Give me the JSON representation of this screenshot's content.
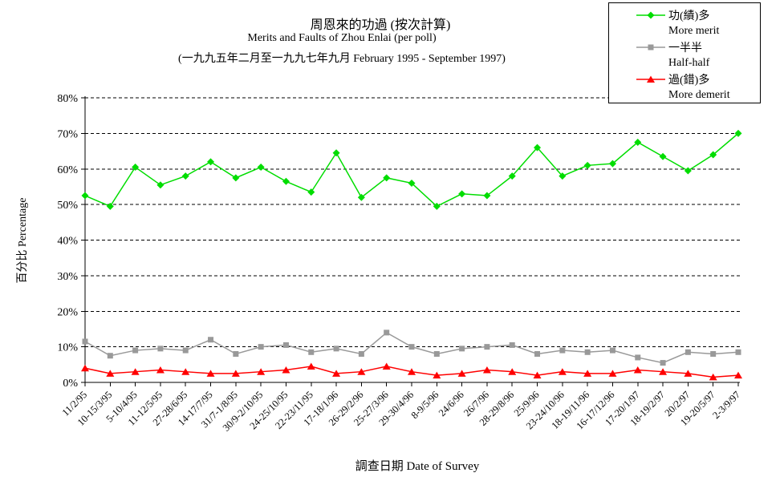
{
  "chart_data": {
    "type": "line",
    "title_zh": "周恩來的功過 (按次計算)",
    "title_en": "Merits and Faults of Zhou Enlai (per poll)",
    "subtitle": "(一九九五年二月至一九九七年九月 February 1995 - September 1997)",
    "xlabel": "調查日期 Date of Survey",
    "ylabel": "百分比 Percentage",
    "ylim": [
      0,
      80
    ],
    "y_tick_step": 10,
    "y_tick_suffix": "%",
    "grid": "horizontal dashed gridlines every 10%",
    "legend_position": "top-right boxed",
    "categories": [
      "11/2/95",
      "10-15/3/95",
      "5-10/4/95",
      "11-12/5/95",
      "27-28/6/95",
      "14-17/7/95",
      "31/7-1/8/95",
      "30/9-2/10/95",
      "24-25/10/95",
      "22-23/11/95",
      "17-18/1/96",
      "26-29/2/96",
      "25-27/3/96",
      "29-30/4/96",
      "8-9/5/96",
      "24/6/96",
      "26/7/96",
      "28-29/8/96",
      "25/9/96",
      "23-24/10/96",
      "18-19/11/96",
      "16-17/12/96",
      "17-20/1/97",
      "18-19/2/97",
      "20/2/97",
      "19-20/5/97",
      "2-3/9/97"
    ],
    "series": [
      {
        "name_zh": "功(績)多",
        "name_en": "More merit",
        "color": "#00DD00",
        "marker": "diamond",
        "values": [
          52.5,
          49.5,
          60.5,
          55.5,
          58,
          62,
          57.5,
          60.5,
          56.5,
          53.5,
          64.5,
          52,
          57.5,
          56,
          49.5,
          53,
          52.5,
          58,
          66,
          58,
          61,
          61.5,
          67.5,
          63.5,
          59.5,
          64,
          70
        ]
      },
      {
        "name_zh": "一半半",
        "name_en": "Half-half",
        "color": "#999999",
        "marker": "square",
        "values": [
          11.5,
          7.5,
          9,
          9.5,
          9,
          12,
          8,
          10,
          10.5,
          8.5,
          9.5,
          8,
          14,
          10,
          8,
          9.5,
          10,
          10.5,
          8,
          9,
          8.5,
          9,
          7,
          5.5,
          8.5,
          8,
          8.5
        ]
      },
      {
        "name_zh": "過(錯)多",
        "name_en": "More demerit",
        "color": "#FF0000",
        "marker": "triangle",
        "values": [
          4,
          2.5,
          3,
          3.5,
          3,
          2.5,
          2.5,
          3,
          3.5,
          4.5,
          2.5,
          3,
          4.5,
          3,
          2,
          2.5,
          3.5,
          3,
          2,
          3,
          2.5,
          2.5,
          3.5,
          3,
          2.5,
          1.5,
          2
        ]
      }
    ]
  }
}
